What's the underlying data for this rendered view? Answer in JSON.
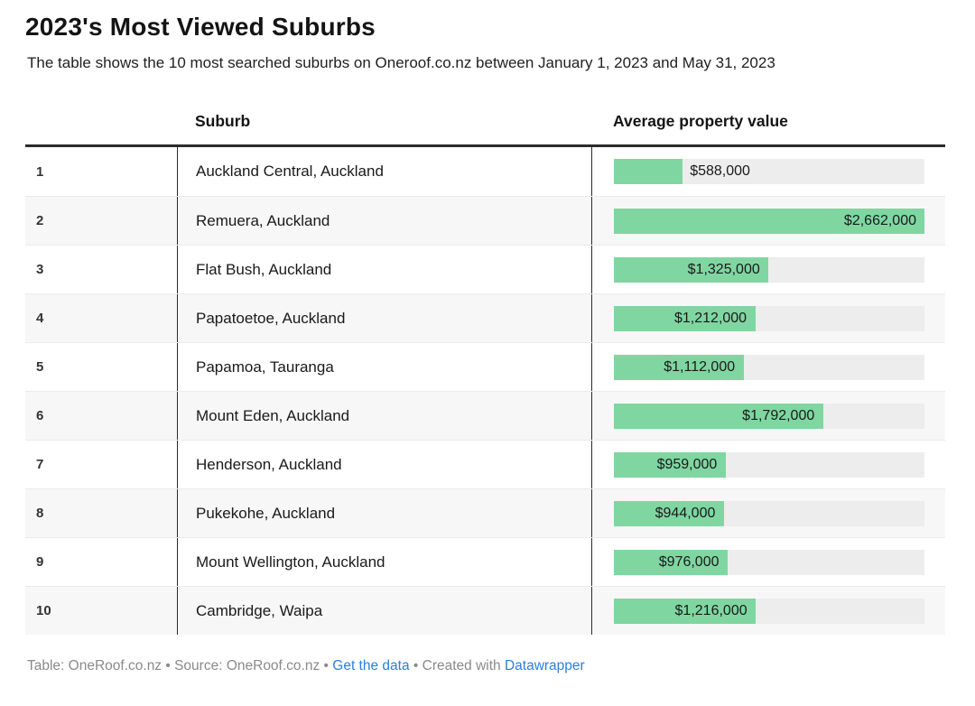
{
  "header": {
    "title": "2023's Most Viewed Suburbs",
    "subtitle": "The table shows the 10 most searched suburbs on Oneroof.co.nz between January 1, 2023 and May 31, 2023"
  },
  "table": {
    "columns": {
      "rank": "",
      "suburb": "Suburb",
      "value": "Average property value"
    },
    "bar_scale_max": 2662000,
    "rows": [
      {
        "rank": "1",
        "suburb": "Auckland Central, Auckland",
        "value": 588000,
        "label": "$588,000"
      },
      {
        "rank": "2",
        "suburb": "Remuera, Auckland",
        "value": 2662000,
        "label": "$2,662,000"
      },
      {
        "rank": "3",
        "suburb": "Flat Bush, Auckland",
        "value": 1325000,
        "label": "$1,325,000"
      },
      {
        "rank": "4",
        "suburb": "Papatoetoe, Auckland",
        "value": 1212000,
        "label": "$1,212,000"
      },
      {
        "rank": "5",
        "suburb": "Papamoa, Tauranga",
        "value": 1112000,
        "label": "$1,112,000"
      },
      {
        "rank": "6",
        "suburb": "Mount Eden, Auckland",
        "value": 1792000,
        "label": "$1,792,000"
      },
      {
        "rank": "7",
        "suburb": "Henderson, Auckland",
        "value": 959000,
        "label": "$959,000"
      },
      {
        "rank": "8",
        "suburb": "Pukekohe, Auckland",
        "value": 944000,
        "label": "$944,000"
      },
      {
        "rank": "9",
        "suburb": "Mount Wellington, Auckland",
        "value": 976000,
        "label": "$976,000"
      },
      {
        "rank": "10",
        "suburb": "Cambridge, Waipa",
        "value": 1216000,
        "label": "$1,216,000"
      }
    ]
  },
  "footer": {
    "prefix": "Table: OneRoof.co.nz • Source: OneRoof.co.nz • ",
    "get_data_label": "Get the data",
    "separator": " • ",
    "created_with": "Created with ",
    "datawrapper_label": "Datawrapper"
  },
  "colors": {
    "bar_green": "#7fd6a1",
    "bar_track": "#ededed",
    "zebra_row": "#f7f7f7",
    "header_rule": "#2b2b2b",
    "link_blue": "#2f7ed8",
    "footer_gray": "#8a8a8a"
  },
  "chart_data": {
    "type": "table",
    "title": "2023's Most Viewed Suburbs",
    "subtitle": "The table shows the 10 most searched suburbs on Oneroof.co.nz between January 1, 2023 and May 31, 2023",
    "columns": [
      "Rank",
      "Suburb",
      "Average property value"
    ],
    "categories": [
      "Auckland Central, Auckland",
      "Remuera, Auckland",
      "Flat Bush, Auckland",
      "Papatoetoe, Auckland",
      "Papamoa, Tauranga",
      "Mount Eden, Auckland",
      "Henderson, Auckland",
      "Pukekohe, Auckland",
      "Mount Wellington, Auckland",
      "Cambridge, Waipa"
    ],
    "values": [
      588000,
      2662000,
      1325000,
      1212000,
      1112000,
      1792000,
      959000,
      944000,
      976000,
      1216000
    ],
    "value_labels": [
      "$588,000",
      "$2,662,000",
      "$1,325,000",
      "$1,212,000",
      "$1,112,000",
      "$1,792,000",
      "$959,000",
      "$944,000",
      "$976,000",
      "$1,216,000"
    ],
    "bar_axis_range": [
      0,
      2662000
    ],
    "bar_color": "#7fd6a1",
    "grid": false,
    "legend": "none"
  }
}
